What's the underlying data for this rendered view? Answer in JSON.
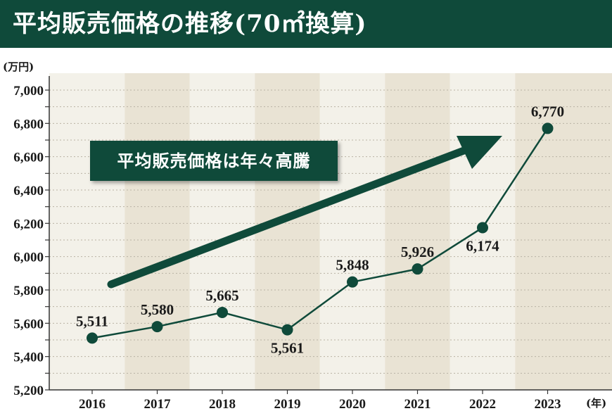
{
  "title": "平均販売価格の推移(70㎡換算)",
  "callout": "平均販売価格は年々高騰",
  "chart_data": {
    "type": "line",
    "unit_label": "(万円)",
    "x_unit_label": "(年)",
    "categories": [
      "2016",
      "2017",
      "2018",
      "2019",
      "2020",
      "2021",
      "2022",
      "2023"
    ],
    "values": [
      5511,
      5580,
      5665,
      5561,
      5848,
      5926,
      6174,
      6770
    ],
    "data_labels": [
      "5,511",
      "5,580",
      "5,665",
      "5,561",
      "5,848",
      "5,926",
      "6,174",
      "6,770"
    ],
    "ylim": [
      5200,
      7000
    ],
    "yticks": [
      5200,
      5400,
      5600,
      5800,
      6000,
      6200,
      6400,
      6600,
      6800,
      7000
    ],
    "ytick_labels": [
      "5,200",
      "5,400",
      "5,600",
      "5,800",
      "6,000",
      "6,200",
      "6,400",
      "6,600",
      "6,800",
      "7,000"
    ],
    "grid": true,
    "trend_arrow": true,
    "colors": {
      "line": "#0f4a3a",
      "title_bg": "#0f4a3a",
      "band_light": "#f3f1e9",
      "band_dark": "#e9e3d4"
    }
  }
}
